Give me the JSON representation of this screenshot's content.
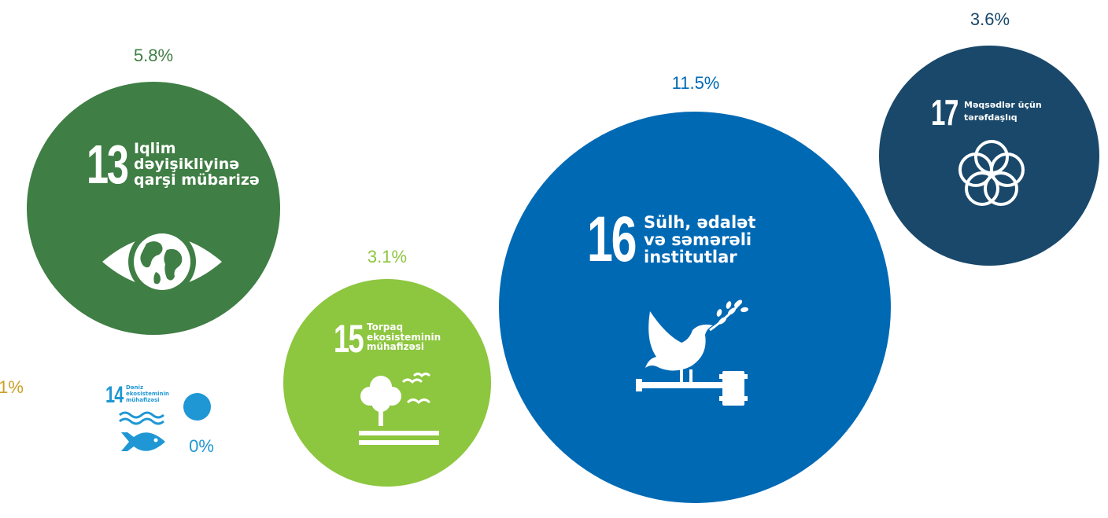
{
  "chart_data": {
    "type": "bubble",
    "items": [
      {
        "goal_number": "13",
        "title_lines": [
          "Iqlim",
          "dəyişikliyinə",
          "qarşi mübarizə"
        ],
        "value": 5.8,
        "label": "5.8%",
        "color": "#3f7e44",
        "icon": "eye-globe-icon"
      },
      {
        "goal_number": "14",
        "title_lines": [
          "Dəniz",
          "ekosisteminin",
          "mühafizəsi"
        ],
        "value": 0,
        "label": "0%",
        "color": "#1f97d4",
        "icon": "fish-waves-icon"
      },
      {
        "goal_number": "15",
        "title_lines": [
          "Torpaq",
          "ekosisteminin",
          "mühafizəsi"
        ],
        "value": 3.1,
        "label": "3.1%",
        "color": "#8dc63f",
        "icon": "tree-birds-icon"
      },
      {
        "goal_number": "16",
        "title_lines": [
          "Sülh, ədalət",
          "və səmərəli",
          "institutlar"
        ],
        "value": 11.5,
        "label": "11.5%",
        "color": "#0069b4",
        "icon": "dove-gavel-icon"
      },
      {
        "goal_number": "17",
        "title_lines": [
          "Məqsədlər üçün",
          "tərəfdaşlıq"
        ],
        "value": 3.6,
        "label": "3.6%",
        "color": "#19486a",
        "icon": "partnership-rings-icon"
      }
    ],
    "partial_label": {
      "text": "1%",
      "color": "#c9a227"
    }
  }
}
